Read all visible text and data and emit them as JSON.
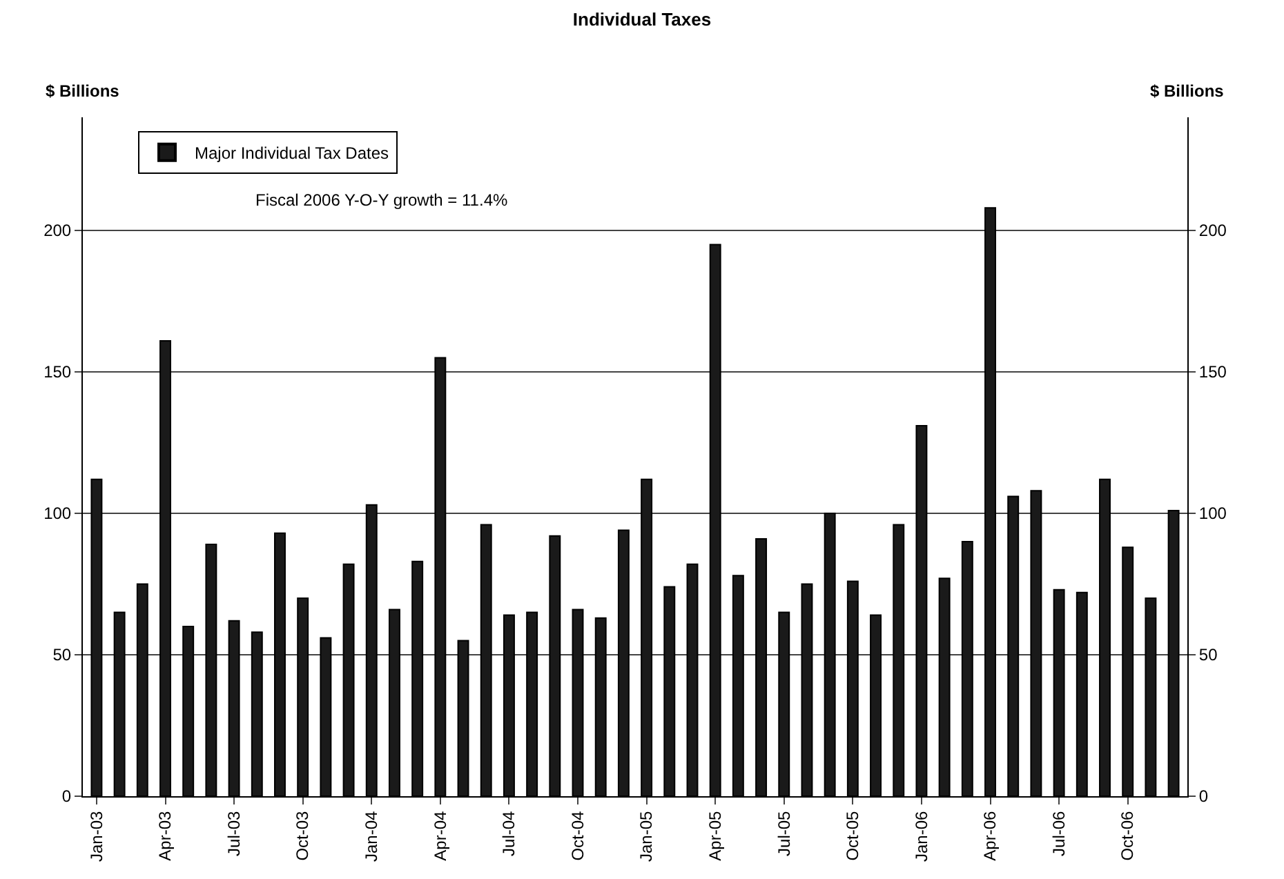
{
  "chart_data": {
    "type": "bar",
    "title": "Individual Taxes",
    "ylabel": "$ Billions",
    "y2label": "$ Billions",
    "categories": [
      "Jan-03",
      null,
      null,
      "Apr-03",
      null,
      null,
      "Jul-03",
      null,
      null,
      "Oct-03",
      null,
      null,
      "Jan-04",
      null,
      null,
      "Apr-04",
      null,
      null,
      "Jul-04",
      null,
      null,
      "Oct-04",
      null,
      null,
      "Jan-05",
      null,
      null,
      "Apr-05",
      null,
      null,
      "Jul-05",
      null,
      null,
      "Oct-05",
      null,
      null,
      "Jan-06",
      null,
      null,
      "Apr-06",
      null,
      null,
      "Jul-06",
      null,
      null,
      "Oct-06",
      null,
      null
    ],
    "series": [
      {
        "name": "Major Individual Tax Dates",
        "color": "#1a1a1a",
        "values": [
          112,
          65,
          75,
          161,
          60,
          89,
          62,
          58,
          93,
          70,
          56,
          82,
          103,
          66,
          83,
          155,
          55,
          96,
          64,
          65,
          92,
          66,
          63,
          94,
          112,
          74,
          82,
          195,
          78,
          91,
          65,
          75,
          100,
          76,
          64,
          96,
          131,
          77,
          90,
          208,
          106,
          108,
          73,
          72,
          112,
          88,
          70,
          101
        ]
      }
    ],
    "ylim": [
      0,
      240
    ],
    "yticks": [
      0,
      50,
      100,
      150,
      200
    ],
    "y2lim": [
      0,
      240
    ],
    "y2ticks": [
      0,
      50,
      100,
      150,
      200
    ],
    "grid": "y",
    "legend": "top left",
    "annotations": [
      "Fiscal 2006 Y-O-Y growth = 11.4%"
    ]
  }
}
